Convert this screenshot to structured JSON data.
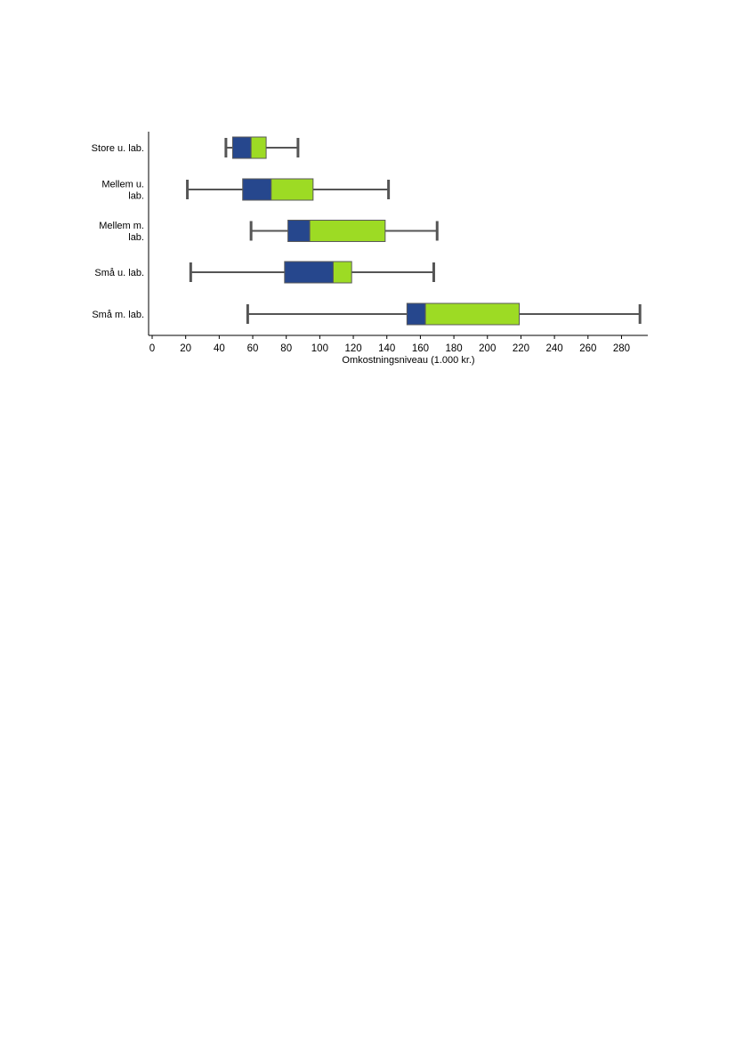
{
  "chart_data": {
    "type": "box",
    "orientation": "horizontal",
    "xlabel": "Omkostningsniveau (1.000 kr.)",
    "ylabel": "",
    "xlim": [
      0,
      296
    ],
    "xticks": [
      0,
      20,
      40,
      60,
      80,
      100,
      120,
      140,
      160,
      180,
      200,
      220,
      240,
      260,
      280
    ],
    "grid": false,
    "colors": {
      "lower_box": "#26478d",
      "upper_box": "#9ddb24",
      "whisker": "#555555",
      "axis": "#000000"
    },
    "categories": [
      {
        "label_lines": [
          "Store u. lab."
        ],
        "min": 44,
        "q1": 48,
        "median": 59,
        "q3": 68,
        "max": 87
      },
      {
        "label_lines": [
          "Mellem u.",
          "lab."
        ],
        "min": 21,
        "q1": 54,
        "median": 71,
        "q3": 96,
        "max": 141
      },
      {
        "label_lines": [
          "Mellem m.",
          "lab."
        ],
        "min": 59,
        "q1": 81,
        "median": 94,
        "q3": 139,
        "max": 170
      },
      {
        "label_lines": [
          "Små u. lab."
        ],
        "min": 23,
        "q1": 79,
        "median": 108,
        "q3": 119,
        "max": 168
      },
      {
        "label_lines": [
          "Små m. lab."
        ],
        "min": 57,
        "q1": 152,
        "median": 163,
        "q3": 219,
        "max": 291
      }
    ]
  }
}
